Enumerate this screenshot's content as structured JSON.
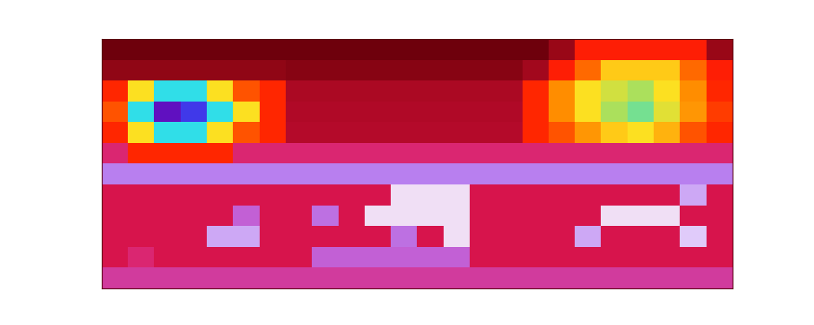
{
  "chart_data": {
    "type": "heatmap",
    "tick_labels": false,
    "cells": [
      [
        0,
        0,
        0,
        0,
        0,
        0,
        0,
        0,
        0,
        0,
        0,
        0,
        0,
        0,
        0,
        0,
        0,
        10,
        55,
        55,
        55,
        55,
        55,
        10
      ],
      [
        8,
        8,
        8,
        8,
        8,
        8,
        8,
        6,
        6,
        6,
        6,
        6,
        6,
        6,
        6,
        6,
        12,
        55,
        62,
        70,
        70,
        70,
        62,
        55
      ],
      [
        56,
        72,
        87,
        87,
        72,
        60,
        56,
        14,
        14,
        14,
        14,
        14,
        14,
        14,
        14,
        14,
        56,
        65,
        72,
        75,
        78,
        72,
        65,
        56
      ],
      [
        60,
        87,
        100,
        96,
        87,
        72,
        56,
        15,
        15,
        15,
        15,
        15,
        15,
        15,
        15,
        15,
        56,
        65,
        72,
        78,
        82,
        74,
        66,
        58
      ],
      [
        56,
        72,
        87,
        87,
        72,
        60,
        56,
        16,
        16,
        16,
        16,
        16,
        16,
        16,
        16,
        16,
        56,
        60,
        66,
        70,
        72,
        68,
        60,
        56
      ],
      [
        30,
        56,
        56,
        56,
        56,
        30,
        30,
        30,
        30,
        30,
        30,
        30,
        30,
        30,
        30,
        30,
        30,
        30,
        30,
        30,
        30,
        30,
        30,
        30
      ],
      [
        42,
        42,
        42,
        42,
        42,
        42,
        42,
        42,
        42,
        42,
        42,
        42,
        42,
        42,
        42,
        42,
        42,
        42,
        42,
        42,
        42,
        42,
        42,
        42
      ],
      [
        25,
        25,
        25,
        25,
        25,
        25,
        25,
        25,
        25,
        25,
        25,
        50,
        50,
        50,
        25,
        25,
        25,
        25,
        25,
        25,
        25,
        25,
        45,
        25
      ],
      [
        25,
        25,
        25,
        25,
        25,
        38,
        25,
        25,
        40,
        25,
        50,
        50,
        50,
        50,
        25,
        25,
        25,
        25,
        25,
        50,
        50,
        50,
        25,
        25
      ],
      [
        25,
        25,
        25,
        25,
        45,
        45,
        25,
        25,
        25,
        25,
        25,
        40,
        25,
        50,
        25,
        25,
        25,
        25,
        45,
        25,
        25,
        25,
        48,
        25
      ],
      [
        25,
        30,
        25,
        25,
        25,
        25,
        25,
        25,
        38,
        38,
        38,
        38,
        38,
        38,
        25,
        25,
        25,
        25,
        25,
        25,
        25,
        25,
        25,
        25
      ],
      [
        33,
        33,
        33,
        33,
        33,
        33,
        33,
        33,
        33,
        33,
        33,
        33,
        33,
        33,
        33,
        33,
        33,
        33,
        33,
        33,
        33,
        33,
        33,
        33
      ]
    ]
  }
}
